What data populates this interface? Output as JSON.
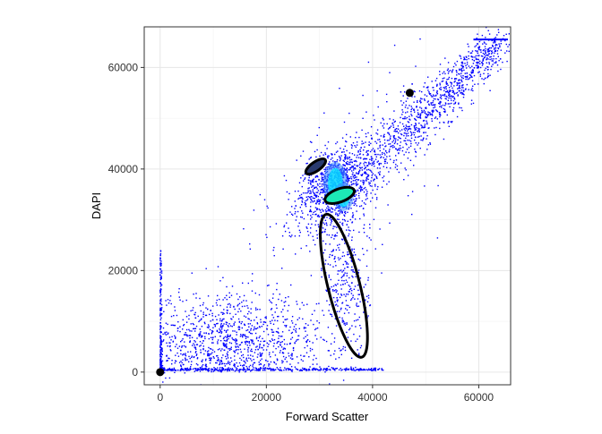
{
  "chart_data": {
    "type": "scatter",
    "xlabel": "Forward Scatter",
    "ylabel": "DAPI",
    "xlim": [
      -3000,
      66000
    ],
    "ylim": [
      -2500,
      68000
    ],
    "x_ticks": [
      0,
      20000,
      40000,
      60000
    ],
    "x_tick_labels": [
      "0",
      "20000",
      "40000",
      "60000"
    ],
    "y_ticks": [
      0,
      20000,
      40000,
      60000
    ],
    "y_tick_labels": [
      "0",
      "20000",
      "40000",
      "60000"
    ],
    "grid": true,
    "legend": "none",
    "colors": {
      "points": "#0000ff",
      "panel_border": "#333333",
      "grid_major": "#e6e6e6",
      "grid_minor": "#f2f2f2",
      "density_high": "#00e5ff",
      "ellipse": "#000000"
    },
    "point_clusters": [
      {
        "name": "diagonal-main",
        "x0": 26000,
        "y0": 28000,
        "x1": 64000,
        "y1": 65000,
        "spread": 2500,
        "count": 1500
      },
      {
        "name": "dense-core",
        "cx": 33000,
        "cy": 37000,
        "sx": 3000,
        "sy": 3500,
        "count": 700
      },
      {
        "name": "low-left-population",
        "cx": 14000,
        "cy": 6000,
        "sx": 9000,
        "sy": 4500,
        "count": 1000
      },
      {
        "name": "mid-ellipse-population",
        "cx": 35000,
        "cy": 17000,
        "sx": 2200,
        "sy": 7000,
        "count": 300
      },
      {
        "name": "baseline",
        "x0": 0,
        "x1": 42000,
        "y": 300,
        "count": 400
      },
      {
        "name": "vertical-at-zero",
        "x": 0,
        "y0": 0,
        "y1": 24000,
        "count": 250
      }
    ],
    "plateau": {
      "x0": 59000,
      "x1": 65500,
      "y": 65500
    },
    "hotspots": [
      {
        "cx": 33000,
        "cy": 37200,
        "rx": 1400,
        "ry": 3000
      },
      {
        "cx": 34500,
        "cy": 34500,
        "rx": 1200,
        "ry": 2000
      }
    ],
    "ellipses": [
      {
        "name": "gate-upper",
        "cx": 29300,
        "cy": 40500,
        "rx": 2200,
        "ry": 900,
        "angle_deg": 35,
        "fill": "#2a3b6f"
      },
      {
        "name": "gate-middle",
        "cx": 33800,
        "cy": 34800,
        "rx": 2900,
        "ry": 1300,
        "angle_deg": 20,
        "fill": "#1de9b6"
      },
      {
        "name": "gate-large",
        "cx": 34600,
        "cy": 17000,
        "rx": 3000,
        "ry": 14500,
        "angle_deg": 14,
        "fill": "none"
      }
    ],
    "markers": [
      {
        "x": 0,
        "y": 0
      },
      {
        "x": 47000,
        "y": 55000
      }
    ]
  }
}
